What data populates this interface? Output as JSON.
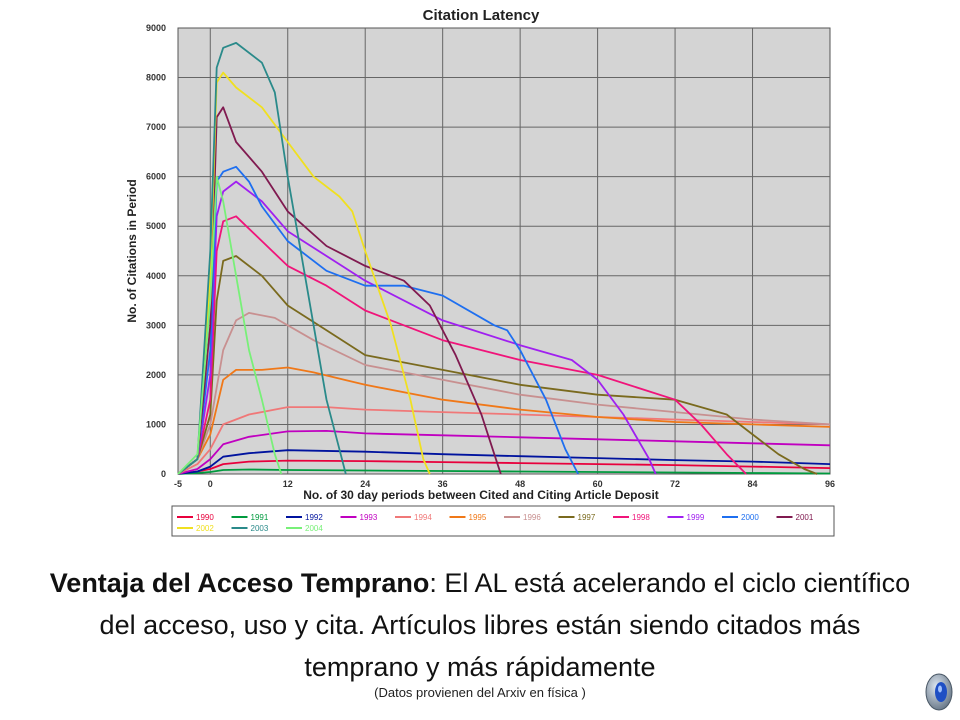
{
  "caption": {
    "bold": "Ventaja del Acceso Temprano",
    "rest": ": El AL está acelerando el ciclo científico del acceso, uso y cita. Artículos libres están siendo citados más temprano y más rápidamente",
    "note": "(Datos provienen del Arxiv en física )"
  },
  "speaker_icon": "speaker-icon",
  "chart_data": {
    "type": "line",
    "title": "Citation Latency",
    "xlabel": "No. of 30 day periods between Cited and Citing Article Deposit",
    "ylabel": "No. of Citations in Period",
    "xlim": [
      -5,
      96
    ],
    "ylim": [
      0,
      9000
    ],
    "xticks": [
      -5,
      0,
      12,
      24,
      36,
      48,
      60,
      72,
      84,
      96
    ],
    "xtick_labels": [
      "-5",
      "0",
      "12",
      "24",
      "36",
      "48",
      "60",
      "72",
      "84",
      "96"
    ],
    "yticks": [
      0,
      1000,
      2000,
      3000,
      4000,
      5000,
      6000,
      7000,
      8000,
      9000
    ],
    "ytick_labels": [
      "0",
      "1000",
      "2000",
      "3000",
      "4000",
      "5000",
      "6000",
      "7000",
      "8000",
      "9000"
    ],
    "grid": true,
    "plot_background": "#d4d4d4",
    "legend_position": "bottom",
    "series": [
      {
        "name": "1990",
        "color": "#e8003c",
        "points": [
          [
            -5,
            0
          ],
          [
            -2,
            50
          ],
          [
            0,
            100
          ],
          [
            2,
            200
          ],
          [
            6,
            250
          ],
          [
            12,
            270
          ],
          [
            24,
            260
          ],
          [
            36,
            240
          ],
          [
            48,
            220
          ],
          [
            60,
            200
          ],
          [
            72,
            180
          ],
          [
            84,
            150
          ],
          [
            96,
            120
          ]
        ]
      },
      {
        "name": "1991",
        "color": "#009a3e",
        "points": [
          [
            -5,
            0
          ],
          [
            -2,
            20
          ],
          [
            0,
            40
          ],
          [
            2,
            80
          ],
          [
            6,
            90
          ],
          [
            12,
            80
          ],
          [
            24,
            70
          ],
          [
            36,
            60
          ],
          [
            48,
            50
          ],
          [
            60,
            40
          ],
          [
            72,
            30
          ],
          [
            84,
            20
          ],
          [
            96,
            10
          ]
        ]
      },
      {
        "name": "1992",
        "color": "#00139e",
        "points": [
          [
            -5,
            0
          ],
          [
            -2,
            50
          ],
          [
            0,
            150
          ],
          [
            2,
            350
          ],
          [
            6,
            420
          ],
          [
            12,
            480
          ],
          [
            24,
            450
          ],
          [
            36,
            400
          ],
          [
            48,
            360
          ],
          [
            60,
            320
          ],
          [
            72,
            280
          ],
          [
            84,
            250
          ],
          [
            96,
            200
          ]
        ]
      },
      {
        "name": "1993",
        "color": "#c000c0",
        "points": [
          [
            -5,
            0
          ],
          [
            -2,
            100
          ],
          [
            0,
            300
          ],
          [
            2,
            600
          ],
          [
            6,
            750
          ],
          [
            12,
            860
          ],
          [
            18,
            870
          ],
          [
            24,
            820
          ],
          [
            36,
            780
          ],
          [
            48,
            740
          ],
          [
            60,
            700
          ],
          [
            72,
            660
          ],
          [
            84,
            620
          ],
          [
            96,
            580
          ]
        ]
      },
      {
        "name": "1994",
        "color": "#f07878",
        "points": [
          [
            -5,
            0
          ],
          [
            -2,
            200
          ],
          [
            0,
            500
          ],
          [
            2,
            1000
          ],
          [
            6,
            1200
          ],
          [
            12,
            1350
          ],
          [
            18,
            1350
          ],
          [
            24,
            1300
          ],
          [
            36,
            1250
          ],
          [
            48,
            1200
          ],
          [
            60,
            1150
          ],
          [
            72,
            1100
          ],
          [
            84,
            1050
          ],
          [
            96,
            1000
          ]
        ]
      },
      {
        "name": "1995",
        "color": "#f07818",
        "points": [
          [
            -5,
            0
          ],
          [
            -2,
            300
          ],
          [
            0,
            800
          ],
          [
            2,
            1900
          ],
          [
            4,
            2100
          ],
          [
            8,
            2100
          ],
          [
            12,
            2150
          ],
          [
            16,
            2050
          ],
          [
            24,
            1800
          ],
          [
            36,
            1500
          ],
          [
            48,
            1300
          ],
          [
            60,
            1150
          ],
          [
            72,
            1050
          ],
          [
            84,
            1000
          ],
          [
            96,
            950
          ]
        ]
      },
      {
        "name": "1996",
        "color": "#c89090",
        "points": [
          [
            -5,
            0
          ],
          [
            -2,
            300
          ],
          [
            0,
            1000
          ],
          [
            2,
            2500
          ],
          [
            4,
            3100
          ],
          [
            6,
            3250
          ],
          [
            10,
            3150
          ],
          [
            16,
            2700
          ],
          [
            24,
            2200
          ],
          [
            36,
            1900
          ],
          [
            48,
            1600
          ],
          [
            60,
            1400
          ],
          [
            72,
            1250
          ],
          [
            84,
            1100
          ],
          [
            96,
            1000
          ]
        ]
      },
      {
        "name": "1997",
        "color": "#7a6a1e",
        "points": [
          [
            -5,
            0
          ],
          [
            -2,
            300
          ],
          [
            0,
            1200
          ],
          [
            1,
            3500
          ],
          [
            2,
            4300
          ],
          [
            4,
            4400
          ],
          [
            8,
            4000
          ],
          [
            12,
            3400
          ],
          [
            18,
            2900
          ],
          [
            24,
            2400
          ],
          [
            36,
            2100
          ],
          [
            48,
            1800
          ],
          [
            60,
            1600
          ],
          [
            72,
            1500
          ],
          [
            80,
            1200
          ],
          [
            84,
            800
          ],
          [
            88,
            400
          ],
          [
            92,
            100
          ],
          [
            94,
            0
          ]
        ]
      },
      {
        "name": "1998",
        "color": "#f0147a",
        "points": [
          [
            -5,
            0
          ],
          [
            -2,
            300
          ],
          [
            0,
            1500
          ],
          [
            1,
            4500
          ],
          [
            2,
            5100
          ],
          [
            4,
            5200
          ],
          [
            8,
            4700
          ],
          [
            12,
            4200
          ],
          [
            18,
            3800
          ],
          [
            24,
            3300
          ],
          [
            36,
            2700
          ],
          [
            48,
            2300
          ],
          [
            60,
            2000
          ],
          [
            72,
            1500
          ],
          [
            76,
            1000
          ],
          [
            80,
            400
          ],
          [
            83,
            0
          ]
        ]
      },
      {
        "name": "1999",
        "color": "#a020f0",
        "points": [
          [
            -5,
            0
          ],
          [
            -2,
            300
          ],
          [
            0,
            2000
          ],
          [
            1,
            5200
          ],
          [
            2,
            5700
          ],
          [
            4,
            5900
          ],
          [
            8,
            5500
          ],
          [
            12,
            4900
          ],
          [
            18,
            4400
          ],
          [
            24,
            3900
          ],
          [
            36,
            3100
          ],
          [
            48,
            2600
          ],
          [
            56,
            2300
          ],
          [
            60,
            1900
          ],
          [
            64,
            1200
          ],
          [
            68,
            300
          ],
          [
            69,
            0
          ]
        ]
      },
      {
        "name": "2000",
        "color": "#1e6ff0",
        "points": [
          [
            -5,
            0
          ],
          [
            -2,
            300
          ],
          [
            0,
            2500
          ],
          [
            1,
            5900
          ],
          [
            2,
            6100
          ],
          [
            4,
            6200
          ],
          [
            6,
            5900
          ],
          [
            8,
            5400
          ],
          [
            12,
            4700
          ],
          [
            18,
            4100
          ],
          [
            24,
            3800
          ],
          [
            30,
            3800
          ],
          [
            36,
            3600
          ],
          [
            44,
            3000
          ],
          [
            46,
            2900
          ],
          [
            48,
            2500
          ],
          [
            52,
            1500
          ],
          [
            55,
            500
          ],
          [
            57,
            0
          ]
        ]
      },
      {
        "name": "2001",
        "color": "#801a50",
        "points": [
          [
            -5,
            0
          ],
          [
            -2,
            300
          ],
          [
            0,
            3000
          ],
          [
            1,
            7200
          ],
          [
            2,
            7400
          ],
          [
            4,
            6700
          ],
          [
            8,
            6100
          ],
          [
            12,
            5300
          ],
          [
            18,
            4600
          ],
          [
            24,
            4200
          ],
          [
            30,
            3900
          ],
          [
            34,
            3400
          ],
          [
            38,
            2400
          ],
          [
            42,
            1200
          ],
          [
            44,
            400
          ],
          [
            45,
            0
          ]
        ]
      },
      {
        "name": "2002",
        "color": "#f0e020",
        "points": [
          [
            -5,
            0
          ],
          [
            -2,
            300
          ],
          [
            0,
            4000
          ],
          [
            1,
            7900
          ],
          [
            2,
            8100
          ],
          [
            4,
            7800
          ],
          [
            8,
            7400
          ],
          [
            12,
            6700
          ],
          [
            16,
            6000
          ],
          [
            20,
            5600
          ],
          [
            22,
            5300
          ],
          [
            24,
            4500
          ],
          [
            28,
            3000
          ],
          [
            31,
            1500
          ],
          [
            33,
            300
          ],
          [
            34,
            0
          ]
        ]
      },
      {
        "name": "2003",
        "color": "#2a8a8a",
        "points": [
          [
            -5,
            0
          ],
          [
            -2,
            300
          ],
          [
            0,
            4500
          ],
          [
            1,
            8200
          ],
          [
            2,
            8600
          ],
          [
            4,
            8700
          ],
          [
            8,
            8300
          ],
          [
            10,
            7700
          ],
          [
            12,
            6000
          ],
          [
            14,
            4500
          ],
          [
            16,
            3000
          ],
          [
            18,
            1500
          ],
          [
            20,
            500
          ],
          [
            21,
            0
          ]
        ]
      },
      {
        "name": "2004",
        "color": "#78f078",
        "points": [
          [
            -5,
            0
          ],
          [
            -2,
            400
          ],
          [
            0,
            3500
          ],
          [
            1,
            6000
          ],
          [
            2,
            5500
          ],
          [
            4,
            4000
          ],
          [
            6,
            2500
          ],
          [
            8,
            1500
          ],
          [
            10,
            400
          ],
          [
            11,
            0
          ]
        ]
      }
    ]
  }
}
